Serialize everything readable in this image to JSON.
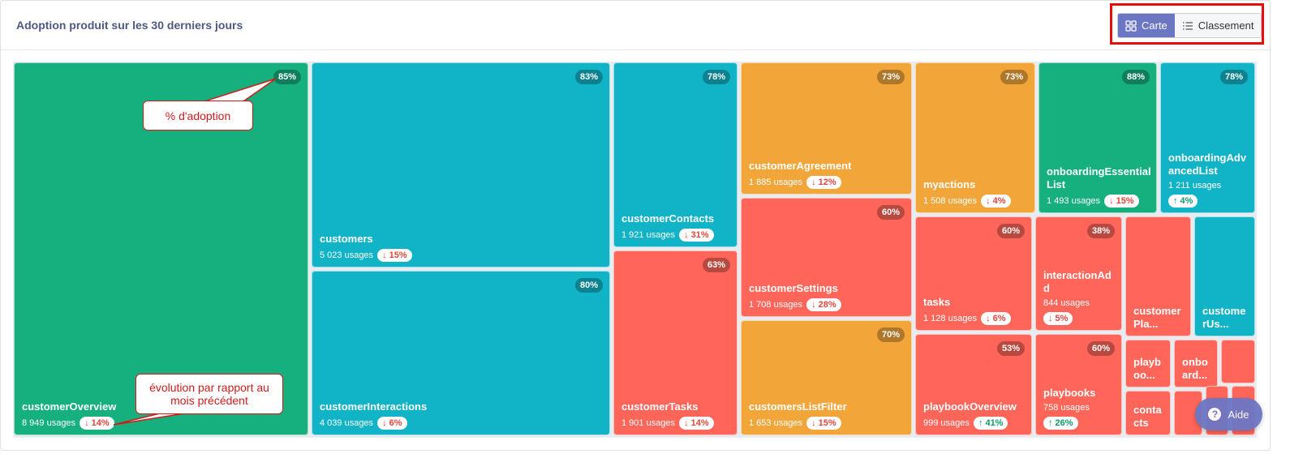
{
  "header": {
    "title": "Adoption produit sur les 30 derniers jours",
    "toggle": {
      "map_label": "Carte",
      "ranking_label": "Classement",
      "active": "Carte"
    }
  },
  "tiles": [
    {
      "id": "t1",
      "name": "customerOverview",
      "usages": "8 949 usages",
      "delta": "↓ 14%",
      "dir": "down",
      "pct": "85%",
      "color": "green"
    },
    {
      "id": "t2",
      "name": "customers",
      "usages": "5 023 usages",
      "delta": "↓ 15%",
      "dir": "down",
      "pct": "83%",
      "color": "teal"
    },
    {
      "id": "t3",
      "name": "customerInteractions",
      "usages": "4 039 usages",
      "delta": "↓ 6%",
      "dir": "down",
      "pct": "80%",
      "color": "teal"
    },
    {
      "id": "t4",
      "name": "customerContacts",
      "usages": "1 921 usages",
      "delta": "↓ 31%",
      "dir": "down",
      "pct": "78%",
      "color": "teal"
    },
    {
      "id": "t5",
      "name": "customerTasks",
      "usages": "1 901 usages",
      "delta": "↓ 14%",
      "dir": "down",
      "pct": "63%",
      "color": "red"
    },
    {
      "id": "t6",
      "name": "customerAgreement",
      "usages": "1 885 usages",
      "delta": "↓ 12%",
      "dir": "down",
      "pct": "73%",
      "color": "orange"
    },
    {
      "id": "t7",
      "name": "customerSettings",
      "usages": "1 708 usages",
      "delta": "↓ 28%",
      "dir": "down",
      "pct": "60%",
      "color": "red"
    },
    {
      "id": "t8",
      "name": "customersListFilter",
      "usages": "1 653 usages",
      "delta": "↓ 15%",
      "dir": "down",
      "pct": "70%",
      "color": "orange"
    },
    {
      "id": "t9",
      "name": "myactions",
      "usages": "1 508 usages",
      "delta": "↓ 4%",
      "dir": "down",
      "pct": "73%",
      "color": "orange"
    },
    {
      "id": "t10",
      "name": "onboardingEssentialList",
      "usages": "1 493 usages",
      "delta": "↓ 15%",
      "dir": "down",
      "pct": "88%",
      "color": "green"
    },
    {
      "id": "t11",
      "name": "onboardingAdvancedList",
      "usages": "1 211 usages",
      "delta": "↑ 4%",
      "dir": "up",
      "pct": "78%",
      "color": "teal"
    },
    {
      "id": "t12",
      "name": "tasks",
      "usages": "1 128 usages",
      "delta": "↓ 6%",
      "dir": "down",
      "pct": "60%",
      "color": "red"
    },
    {
      "id": "t13",
      "name": "interactionAdd",
      "usages": "844 usages",
      "delta": "↓ 5%",
      "dir": "down",
      "pct": "38%",
      "color": "red"
    },
    {
      "id": "t14",
      "name": "customerPla...",
      "usages": "",
      "delta": "",
      "dir": "",
      "pct": "",
      "color": "red"
    },
    {
      "id": "t15",
      "name": "customerUs...",
      "usages": "",
      "delta": "",
      "dir": "",
      "pct": "",
      "color": "teal"
    },
    {
      "id": "t16",
      "name": "playbookOverview",
      "usages": "999 usages",
      "delta": "↑ 41%",
      "dir": "up",
      "pct": "53%",
      "color": "red"
    },
    {
      "id": "t17",
      "name": "playbooks",
      "usages": "758 usages",
      "delta": "↑ 26%",
      "dir": "up",
      "pct": "60%",
      "color": "red"
    },
    {
      "id": "t18",
      "name": "playboo...",
      "usages": "",
      "delta": "",
      "dir": "",
      "pct": "",
      "color": "red"
    },
    {
      "id": "t19",
      "name": "onboard...",
      "usages": "",
      "delta": "",
      "dir": "",
      "pct": "",
      "color": "red"
    },
    {
      "id": "t20",
      "name": "",
      "usages": "",
      "delta": "",
      "dir": "",
      "pct": "",
      "color": "red"
    },
    {
      "id": "t21",
      "name": "contacts",
      "usages": "",
      "delta": "",
      "dir": "",
      "pct": "",
      "color": "red"
    },
    {
      "id": "t22",
      "name": "",
      "usages": "",
      "delta": "",
      "dir": "",
      "pct": "",
      "color": "red"
    },
    {
      "id": "t23",
      "name": "",
      "usages": "",
      "delta": "",
      "dir": "",
      "pct": "",
      "color": "red"
    },
    {
      "id": "t24",
      "name": "",
      "usages": "",
      "delta": "",
      "dir": "",
      "pct": "",
      "color": "red"
    }
  ],
  "callouts": {
    "adoption": "% d'adoption",
    "evolution": "évolution par rapport au mois précédent"
  },
  "help_button": {
    "label": "Aide",
    "icon": "question-icon"
  }
}
